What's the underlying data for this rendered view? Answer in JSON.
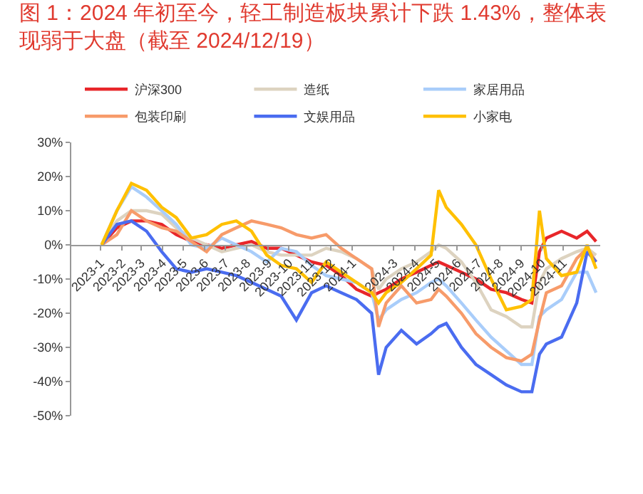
{
  "chart_data": {
    "type": "line",
    "title": "图 1：2024 年初至今，轻工制造板块累计下跌 1.43%，整体表现弱于大盘（截至 2024/12/19）",
    "x": [
      "2023-01-03",
      "2023-01-25",
      "2023-02-15",
      "2023-03-09",
      "2023-03-31",
      "2023-04-21",
      "2023-05-13",
      "2023-06-04",
      "2023-06-26",
      "2023-07-17",
      "2023-08-08",
      "2023-08-30",
      "2023-09-20",
      "2023-10-12",
      "2023-11-03",
      "2023-11-24",
      "2023-12-16",
      "2024-01-07",
      "2024-01-29",
      "2024-02-08",
      "2024-02-19",
      "2024-03-12",
      "2024-04-03",
      "2024-04-24",
      "2024-05-05",
      "2024-05-16",
      "2024-06-07",
      "2024-06-28",
      "2024-07-20",
      "2024-08-11",
      "2024-09-02",
      "2024-09-17",
      "2024-09-28",
      "2024-10-08",
      "2024-10-30",
      "2024-11-21",
      "2024-12-06",
      "2024-12-19"
    ],
    "series": [
      {
        "name": "沪深300",
        "color": "#e8262a",
        "values": [
          0,
          5,
          7,
          7,
          6,
          3,
          1,
          0,
          -1,
          0,
          1,
          -1,
          -1,
          -3,
          -5,
          -6,
          -9,
          -13,
          -15,
          -14,
          -13,
          -10,
          -8,
          -6,
          -5,
          -6,
          -8,
          -10,
          -13,
          -14,
          -16,
          -17,
          -2,
          2,
          4,
          2,
          4,
          1
        ]
      },
      {
        "name": "造纸",
        "color": "#ddd3c0",
        "values": [
          0,
          7,
          10,
          10,
          9,
          5,
          2,
          0,
          -2,
          -1,
          0,
          -2,
          -3,
          -3,
          -3,
          -1,
          -2,
          -4,
          -7,
          -13,
          -10,
          -7,
          -5,
          -2,
          0,
          -1,
          -5,
          -11,
          -19,
          -21,
          -24,
          -24,
          -11,
          -7,
          -4,
          -2,
          -1,
          -3
        ]
      },
      {
        "name": "家居用品",
        "color": "#a9cdfa",
        "values": [
          0,
          10,
          17,
          14,
          10,
          6,
          0,
          -1,
          2,
          0,
          -2,
          -5,
          -1,
          -2,
          -6,
          -9,
          -10,
          -11,
          -14,
          -22,
          -19,
          -16,
          -14,
          -11,
          -10,
          -12,
          -17,
          -22,
          -27,
          -31,
          -35,
          -35,
          -21,
          -19,
          -16,
          -8,
          -8,
          -14
        ]
      },
      {
        "name": "包装印刷",
        "color": "#f79b6a",
        "values": [
          0,
          3,
          10,
          7,
          5,
          4,
          1,
          -2,
          3,
          5,
          7,
          6,
          5,
          3,
          2,
          3,
          -1,
          -4,
          -7,
          -24,
          -17,
          -12,
          -17,
          -16,
          -13,
          -15,
          -20,
          -26,
          -30,
          -33,
          -34,
          -32,
          -22,
          -14,
          -12,
          -4,
          -1,
          -5
        ]
      },
      {
        "name": "文娱用品",
        "color": "#4a6cf0",
        "values": [
          0,
          6,
          7,
          4,
          -2,
          -7,
          -8,
          -7,
          -8,
          -9,
          -11,
          -13,
          -15,
          -22,
          -14,
          -12,
          -14,
          -16,
          -20,
          -38,
          -30,
          -25,
          -29,
          -26,
          -24,
          -23,
          -30,
          -35,
          -38,
          -41,
          -43,
          -43,
          -32,
          -29,
          -27,
          -17,
          -2,
          -5
        ]
      },
      {
        "name": "小家电",
        "color": "#ffc000",
        "values": [
          0,
          10,
          18,
          16,
          11,
          8,
          2,
          3,
          6,
          7,
          4,
          -3,
          -6,
          -7,
          -11,
          -5,
          -8,
          -11,
          -14,
          -17,
          -14,
          -11,
          -7,
          -3,
          16,
          11,
          6,
          0,
          -10,
          -19,
          -18,
          -16,
          10,
          -4,
          -9,
          -8,
          0,
          -7
        ]
      }
    ],
    "xlim": [
      "2022-11-20",
      "2024-12-25"
    ],
    "xticks": [
      {
        "value": "2023-01-01",
        "label": "2023-1"
      },
      {
        "value": "2023-02-01",
        "label": "2023-2"
      },
      {
        "value": "2023-03-01",
        "label": "2023-3"
      },
      {
        "value": "2023-04-01",
        "label": "2023-4"
      },
      {
        "value": "2023-05-01",
        "label": "2023-5"
      },
      {
        "value": "2023-06-01",
        "label": "2023-6"
      },
      {
        "value": "2023-07-01",
        "label": "2023-7"
      },
      {
        "value": "2023-08-01",
        "label": "2023-8"
      },
      {
        "value": "2023-09-01",
        "label": "2023-9"
      },
      {
        "value": "2023-10-01",
        "label": "2023-10"
      },
      {
        "value": "2023-11-01",
        "label": "2023-11"
      },
      {
        "value": "2023-12-01",
        "label": "2023-12"
      },
      {
        "value": "2024-01-01",
        "label": "2024-1"
      },
      {
        "value": "2024-03-01",
        "label": "2024-3"
      },
      {
        "value": "2024-04-01",
        "label": "2024-4"
      },
      {
        "value": "2024-05-01",
        "label": "2024-5"
      },
      {
        "value": "2024-06-01",
        "label": "2024-6"
      },
      {
        "value": "2024-07-01",
        "label": "2024-7"
      },
      {
        "value": "2024-08-01",
        "label": "2024-8"
      },
      {
        "value": "2024-09-01",
        "label": "2024-9"
      },
      {
        "value": "2024-10-01",
        "label": "2024-10"
      },
      {
        "value": "2024-11-01",
        "label": "2024-11"
      }
    ],
    "ylim": [
      -50,
      30
    ],
    "yticks": [
      {
        "value": 30,
        "label": "30%"
      },
      {
        "value": 20,
        "label": "20%"
      },
      {
        "value": 10,
        "label": "10%"
      },
      {
        "value": 0,
        "label": "0%"
      },
      {
        "value": -10,
        "label": "-10%"
      },
      {
        "value": -20,
        "label": "-20%"
      },
      {
        "value": -30,
        "label": "-30%"
      },
      {
        "value": -40,
        "label": "-40%"
      },
      {
        "value": -50,
        "label": "-50%"
      }
    ],
    "legend": "top",
    "marker": "none",
    "line_style": "solid"
  }
}
